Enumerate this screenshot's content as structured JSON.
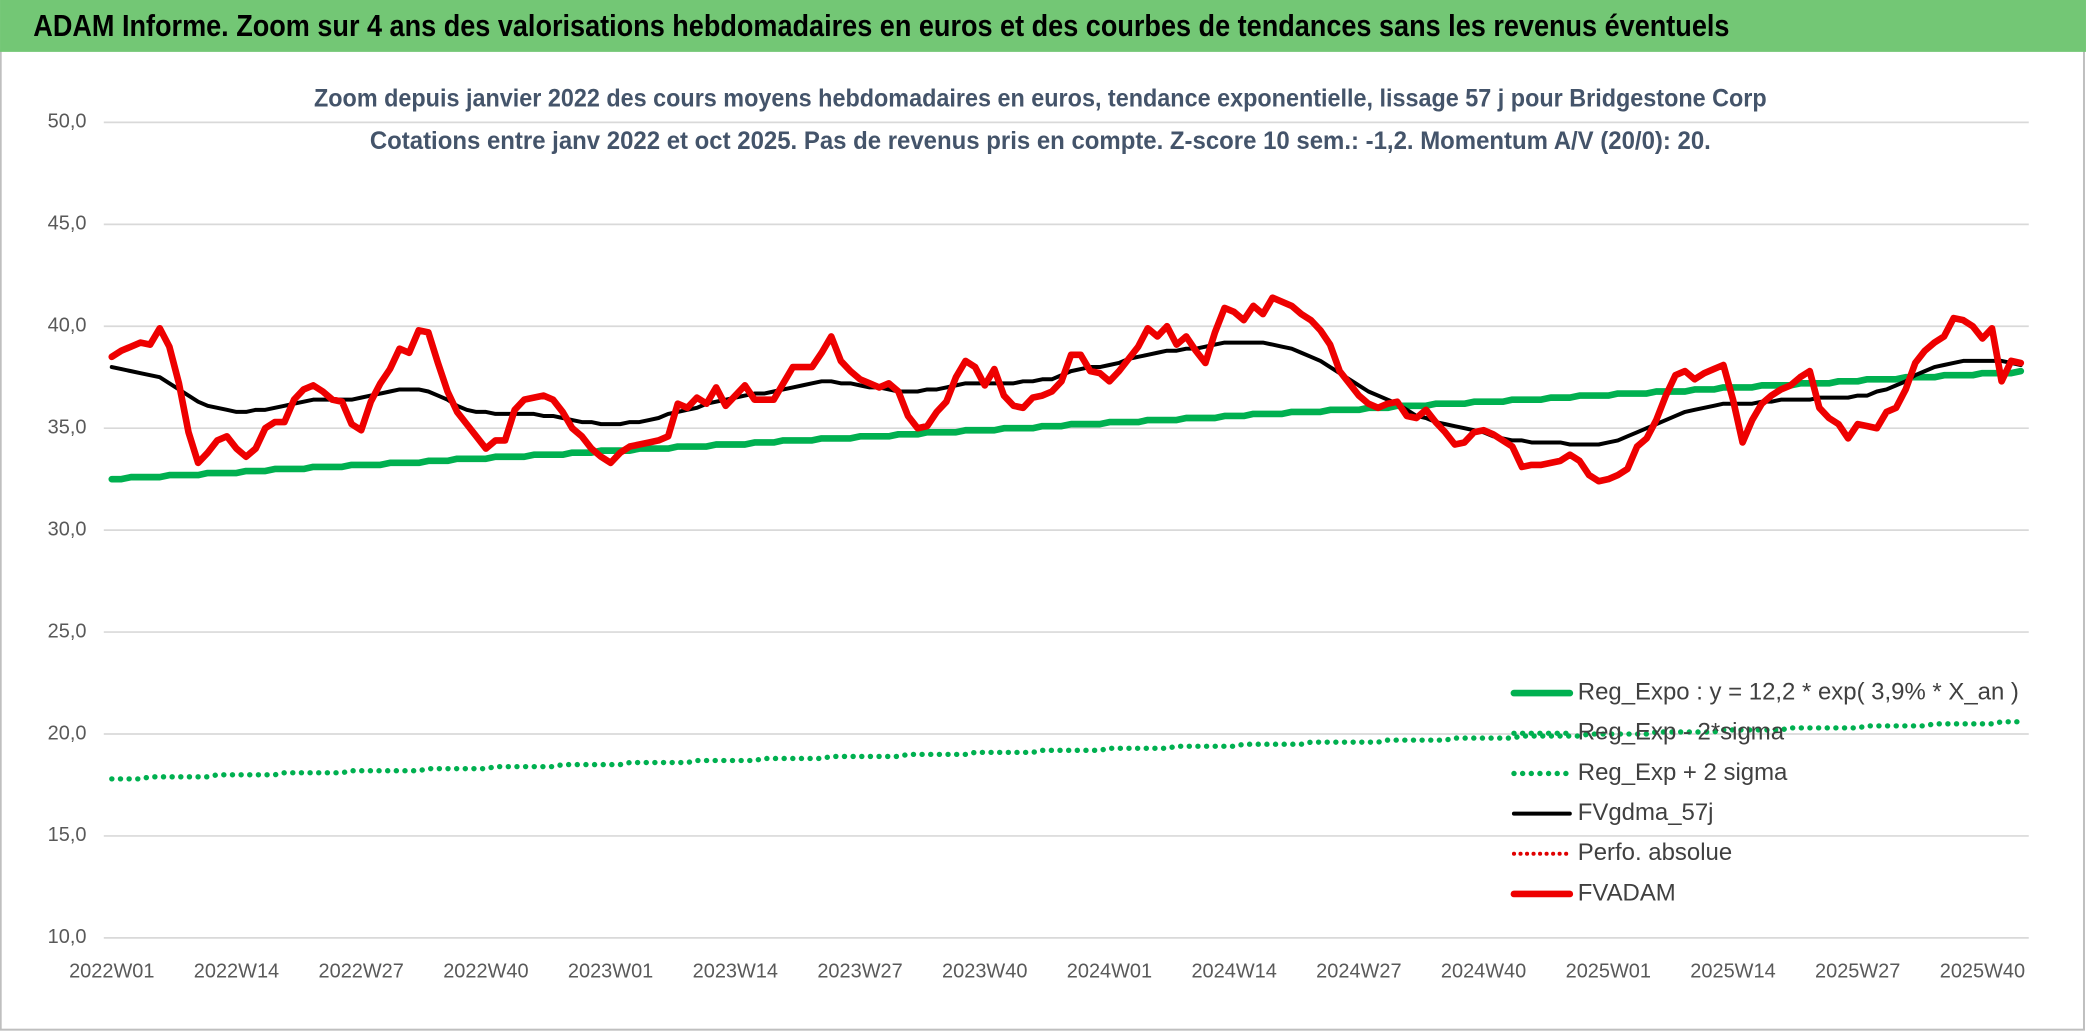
{
  "header": {
    "title": "ADAM Informe. Zoom sur 4 ans des valorisations hebdomadaires en euros et des courbes de tendances sans les revenus éventuels"
  },
  "chart_data": {
    "type": "line",
    "title": "Zoom depuis janvier 2022  des cours moyens hebdomadaires en euros, tendance exponentielle, lissage 57 j pour Bridgestone Corp",
    "subtitle": "Cotations entre janv 2022 et oct 2025. Pas de revenus pris en compte. Z-score 10 sem.: -1,2. Momentum A/V (20/0): 20.",
    "categories": [
      "2022W01",
      null,
      null,
      null,
      null,
      null,
      null,
      null,
      null,
      null,
      null,
      null,
      null,
      "2022W14",
      null,
      null,
      null,
      null,
      null,
      null,
      null,
      null,
      null,
      null,
      null,
      null,
      "2022W27",
      null,
      null,
      null,
      null,
      null,
      null,
      null,
      null,
      null,
      null,
      null,
      null,
      "2022W40",
      null,
      null,
      null,
      null,
      null,
      null,
      null,
      null,
      null,
      null,
      null,
      null,
      "2023W01",
      null,
      null,
      null,
      null,
      null,
      null,
      null,
      null,
      null,
      null,
      null,
      null,
      "2023W14",
      null,
      null,
      null,
      null,
      null,
      null,
      null,
      null,
      null,
      null,
      null,
      null,
      "2023W27",
      null,
      null,
      null,
      null,
      null,
      null,
      null,
      null,
      null,
      null,
      null,
      null,
      "2023W40",
      null,
      null,
      null,
      null,
      null,
      null,
      null,
      null,
      null,
      null,
      null,
      null,
      "2024W01",
      null,
      null,
      null,
      null,
      null,
      null,
      null,
      null,
      null,
      null,
      null,
      null,
      "2024W14",
      null,
      null,
      null,
      null,
      null,
      null,
      null,
      null,
      null,
      null,
      null,
      null,
      "2024W27",
      null,
      null,
      null,
      null,
      null,
      null,
      null,
      null,
      null,
      null,
      null,
      null,
      "2024W40",
      null,
      null,
      null,
      null,
      null,
      null,
      null,
      null,
      null,
      null,
      null,
      null,
      "2025W01",
      null,
      null,
      null,
      null,
      null,
      null,
      null,
      null,
      null,
      null,
      null,
      null,
      "2025W14",
      null,
      null,
      null,
      null,
      null,
      null,
      null,
      null,
      null,
      null,
      null,
      null,
      "2025W27",
      null,
      null,
      null,
      null,
      null,
      null,
      null,
      null,
      null,
      null,
      null,
      null,
      "2025W40",
      null,
      null,
      null,
      null
    ],
    "ylim": [
      10,
      50
    ],
    "yticks": [
      {
        "value": 10,
        "label": "10,0"
      },
      {
        "value": 15,
        "label": "15,0"
      },
      {
        "value": 20,
        "label": "20,0"
      },
      {
        "value": 25,
        "label": "25,0"
      },
      {
        "value": 30,
        "label": "30,0"
      },
      {
        "value": 35,
        "label": "35,0"
      },
      {
        "value": 40,
        "label": "40,0"
      },
      {
        "value": 45,
        "label": "45,0"
      },
      {
        "value": 50,
        "label": "50,0"
      }
    ],
    "grid": true,
    "legend": "bottom-right",
    "series": [
      {
        "name": "Reg_Expo : y = 12,2 * exp( 3,9% *  X_an )",
        "color": "#00b050",
        "width": 5,
        "dash": "solid",
        "values": [
          32.5,
          32.5,
          32.6,
          32.6,
          32.6,
          32.6,
          32.7,
          32.7,
          32.7,
          32.7,
          32.8,
          32.8,
          32.8,
          32.8,
          32.9,
          32.9,
          32.9,
          33.0,
          33.0,
          33.0,
          33.0,
          33.1,
          33.1,
          33.1,
          33.1,
          33.2,
          33.2,
          33.2,
          33.2,
          33.3,
          33.3,
          33.3,
          33.3,
          33.4,
          33.4,
          33.4,
          33.5,
          33.5,
          33.5,
          33.5,
          33.6,
          33.6,
          33.6,
          33.6,
          33.7,
          33.7,
          33.7,
          33.7,
          33.8,
          33.8,
          33.8,
          33.9,
          33.9,
          33.9,
          33.9,
          34.0,
          34.0,
          34.0,
          34.0,
          34.1,
          34.1,
          34.1,
          34.1,
          34.2,
          34.2,
          34.2,
          34.2,
          34.3,
          34.3,
          34.3,
          34.4,
          34.4,
          34.4,
          34.4,
          34.5,
          34.5,
          34.5,
          34.5,
          34.6,
          34.6,
          34.6,
          34.6,
          34.7,
          34.7,
          34.7,
          34.8,
          34.8,
          34.8,
          34.8,
          34.9,
          34.9,
          34.9,
          34.9,
          35.0,
          35.0,
          35.0,
          35.0,
          35.1,
          35.1,
          35.1,
          35.2,
          35.2,
          35.2,
          35.2,
          35.3,
          35.3,
          35.3,
          35.3,
          35.4,
          35.4,
          35.4,
          35.4,
          35.5,
          35.5,
          35.5,
          35.5,
          35.6,
          35.6,
          35.6,
          35.7,
          35.7,
          35.7,
          35.7,
          35.8,
          35.8,
          35.8,
          35.8,
          35.9,
          35.9,
          35.9,
          35.9,
          36.0,
          36.0,
          36.0,
          36.1,
          36.1,
          36.1,
          36.1,
          36.2,
          36.2,
          36.2,
          36.2,
          36.3,
          36.3,
          36.3,
          36.3,
          36.4,
          36.4,
          36.4,
          36.4,
          36.5,
          36.5,
          36.5,
          36.6,
          36.6,
          36.6,
          36.6,
          36.7,
          36.7,
          36.7,
          36.7,
          36.8,
          36.8,
          36.8,
          36.8,
          36.9,
          36.9,
          36.9,
          37.0,
          37.0,
          37.0,
          37.0,
          37.1,
          37.1,
          37.1,
          37.1,
          37.2,
          37.2,
          37.2,
          37.2,
          37.3,
          37.3,
          37.3,
          37.4,
          37.4,
          37.4,
          37.4,
          37.5,
          37.5,
          37.5,
          37.5,
          37.6,
          37.6,
          37.6,
          37.6,
          37.7,
          37.7,
          37.7,
          37.7,
          37.8
        ]
      },
      {
        "name": "Reg_Exp - 2*sigma",
        "color": "#00b050",
        "width": 4,
        "dash": "dotted",
        "values": [
          17.8,
          17.8,
          17.8,
          17.8,
          17.9,
          17.9,
          17.9,
          17.9,
          17.9,
          17.9,
          17.9,
          18.0,
          18.0,
          18.0,
          18.0,
          18.0,
          18.0,
          18.0,
          18.1,
          18.1,
          18.1,
          18.1,
          18.1,
          18.1,
          18.1,
          18.2,
          18.2,
          18.2,
          18.2,
          18.2,
          18.2,
          18.2,
          18.2,
          18.3,
          18.3,
          18.3,
          18.3,
          18.3,
          18.3,
          18.3,
          18.4,
          18.4,
          18.4,
          18.4,
          18.4,
          18.4,
          18.4,
          18.5,
          18.5,
          18.5,
          18.5,
          18.5,
          18.5,
          18.5,
          18.6,
          18.6,
          18.6,
          18.6,
          18.6,
          18.6,
          18.6,
          18.7,
          18.7,
          18.7,
          18.7,
          18.7,
          18.7,
          18.7,
          18.8,
          18.8,
          18.8,
          18.8,
          18.8,
          18.8,
          18.8,
          18.9,
          18.9,
          18.9,
          18.9,
          18.9,
          18.9,
          18.9,
          18.9,
          19.0,
          19.0,
          19.0,
          19.0,
          19.0,
          19.0,
          19.0,
          19.1,
          19.1,
          19.1,
          19.1,
          19.1,
          19.1,
          19.1,
          19.2,
          19.2,
          19.2,
          19.2,
          19.2,
          19.2,
          19.2,
          19.3,
          19.3,
          19.3,
          19.3,
          19.3,
          19.3,
          19.3,
          19.4,
          19.4,
          19.4,
          19.4,
          19.4,
          19.4,
          19.4,
          19.5,
          19.5,
          19.5,
          19.5,
          19.5,
          19.5,
          19.5,
          19.6,
          19.6,
          19.6,
          19.6,
          19.6,
          19.6,
          19.6,
          19.6,
          19.7,
          19.7,
          19.7,
          19.7,
          19.7,
          19.7,
          19.7,
          19.8,
          19.8,
          19.8,
          19.8,
          19.8,
          19.8,
          19.8,
          19.9,
          19.9,
          19.9,
          19.9,
          19.9,
          19.9,
          19.9,
          20.0,
          20.0,
          20.0,
          20.0,
          20.0,
          20.0,
          20.0,
          20.1,
          20.1,
          20.1,
          20.1,
          20.1,
          20.1,
          20.1,
          20.2,
          20.2,
          20.2,
          20.2,
          20.2,
          20.2,
          20.2,
          20.3,
          20.3,
          20.3,
          20.3,
          20.3,
          20.3,
          20.3,
          20.3,
          20.4,
          20.4,
          20.4,
          20.4,
          20.4,
          20.4,
          20.4,
          20.5,
          20.5,
          20.5,
          20.5,
          20.5,
          20.5,
          20.5,
          20.6,
          20.6,
          20.6
        ]
      },
      {
        "name": "Reg_Exp + 2 sigma",
        "color": "#00b050",
        "width": 4,
        "dash": "dotted"
      },
      {
        "name": "FVgdma_57j",
        "color": "#000000",
        "width": 3,
        "dash": "solid",
        "values": [
          38.0,
          37.9,
          37.8,
          37.7,
          37.6,
          37.5,
          37.2,
          36.9,
          36.6,
          36.3,
          36.1,
          36.0,
          35.9,
          35.8,
          35.8,
          35.9,
          35.9,
          36.0,
          36.1,
          36.2,
          36.3,
          36.4,
          36.4,
          36.4,
          36.4,
          36.4,
          36.5,
          36.6,
          36.7,
          36.8,
          36.9,
          36.9,
          36.9,
          36.8,
          36.6,
          36.4,
          36.1,
          35.9,
          35.8,
          35.8,
          35.7,
          35.7,
          35.7,
          35.7,
          35.7,
          35.6,
          35.6,
          35.5,
          35.4,
          35.3,
          35.3,
          35.2,
          35.2,
          35.2,
          35.3,
          35.3,
          35.4,
          35.5,
          35.7,
          35.8,
          35.9,
          36.0,
          36.2,
          36.3,
          36.4,
          36.5,
          36.6,
          36.7,
          36.7,
          36.8,
          36.9,
          37.0,
          37.1,
          37.2,
          37.3,
          37.3,
          37.2,
          37.2,
          37.1,
          37.0,
          37.0,
          36.9,
          36.8,
          36.8,
          36.8,
          36.9,
          36.9,
          37.0,
          37.1,
          37.2,
          37.2,
          37.2,
          37.2,
          37.2,
          37.2,
          37.3,
          37.3,
          37.4,
          37.4,
          37.6,
          37.8,
          37.9,
          38.0,
          38.0,
          38.1,
          38.2,
          38.4,
          38.5,
          38.6,
          38.7,
          38.8,
          38.8,
          38.9,
          38.9,
          39.0,
          39.1,
          39.2,
          39.2,
          39.2,
          39.2,
          39.2,
          39.1,
          39.0,
          38.9,
          38.7,
          38.5,
          38.3,
          38.0,
          37.7,
          37.4,
          37.1,
          36.8,
          36.6,
          36.4,
          36.2,
          35.9,
          35.6,
          35.5,
          35.3,
          35.2,
          35.1,
          35.0,
          34.9,
          34.8,
          34.6,
          34.5,
          34.4,
          34.4,
          34.3,
          34.3,
          34.3,
          34.3,
          34.2,
          34.2,
          34.2,
          34.2,
          34.3,
          34.4,
          34.6,
          34.8,
          35.0,
          35.2,
          35.4,
          35.6,
          35.8,
          35.9,
          36.0,
          36.1,
          36.2,
          36.2,
          36.2,
          36.2,
          36.3,
          36.3,
          36.4,
          36.4,
          36.4,
          36.4,
          36.5,
          36.5,
          36.5,
          36.5,
          36.6,
          36.6,
          36.8,
          36.9,
          37.1,
          37.3,
          37.6,
          37.8,
          38.0,
          38.1,
          38.2,
          38.3,
          38.3,
          38.3,
          38.3,
          38.3,
          38.2,
          38.1
        ]
      },
      {
        "name": "Perfo. absolue",
        "color": "#e00000",
        "width": 3,
        "dash": "dotted"
      },
      {
        "name": "FVADAM",
        "color": "#ee0000",
        "width": 5,
        "dash": "solid",
        "values": [
          38.5,
          38.8,
          39.0,
          39.2,
          39.1,
          39.9,
          39.0,
          37.2,
          34.8,
          33.3,
          33.8,
          34.4,
          34.6,
          34.0,
          33.6,
          34.0,
          35.0,
          35.3,
          35.3,
          36.4,
          36.9,
          37.1,
          36.8,
          36.4,
          36.3,
          35.2,
          34.9,
          36.3,
          37.2,
          37.9,
          38.9,
          38.7,
          39.8,
          39.7,
          38.2,
          36.8,
          35.8,
          35.2,
          34.6,
          34.0,
          34.4,
          34.4,
          35.9,
          36.4,
          36.5,
          36.6,
          36.4,
          35.8,
          35.0,
          34.6,
          34.0,
          33.6,
          33.3,
          33.8,
          34.1,
          34.2,
          34.3,
          34.4,
          34.6,
          36.2,
          36.0,
          36.5,
          36.2,
          37.0,
          36.1,
          36.6,
          37.1,
          36.4,
          36.4,
          36.4,
          37.2,
          38.0,
          38.0,
          38.0,
          38.7,
          39.5,
          38.3,
          37.8,
          37.4,
          37.2,
          37.0,
          37.2,
          36.8,
          35.6,
          35.0,
          35.1,
          35.8,
          36.3,
          37.5,
          38.3,
          38.0,
          37.1,
          37.9,
          36.6,
          36.1,
          36.0,
          36.5,
          36.6,
          36.8,
          37.3,
          38.6,
          38.6,
          37.8,
          37.7,
          37.3,
          37.8,
          38.4,
          39.0,
          39.9,
          39.5,
          40.0,
          39.1,
          39.5,
          38.8,
          38.2,
          39.7,
          40.9,
          40.7,
          40.3,
          41.0,
          40.6,
          41.4,
          41.2,
          41.0,
          40.6,
          40.3,
          39.8,
          39.1,
          37.8,
          37.2,
          36.6,
          36.2,
          36.0,
          36.2,
          36.3,
          35.6,
          35.5,
          35.9,
          35.3,
          34.8,
          34.2,
          34.3,
          34.8,
          34.9,
          34.7,
          34.4,
          34.1,
          33.1,
          33.2,
          33.2,
          33.3,
          33.4,
          33.7,
          33.4,
          32.7,
          32.4,
          32.5,
          32.7,
          33.0,
          34.1,
          34.5,
          35.4,
          36.6,
          37.6,
          37.8,
          37.4,
          37.7,
          37.9,
          38.1,
          36.4,
          34.3,
          35.4,
          36.2,
          36.6,
          36.9,
          37.1,
          37.5,
          37.8,
          36.0,
          35.5,
          35.2,
          34.5,
          35.2,
          35.1,
          35.0,
          35.8,
          36.0,
          36.9,
          38.2,
          38.8,
          39.2,
          39.5,
          40.4,
          40.3,
          40.0,
          39.4,
          39.9,
          37.3,
          38.3,
          38.2
        ]
      }
    ]
  }
}
